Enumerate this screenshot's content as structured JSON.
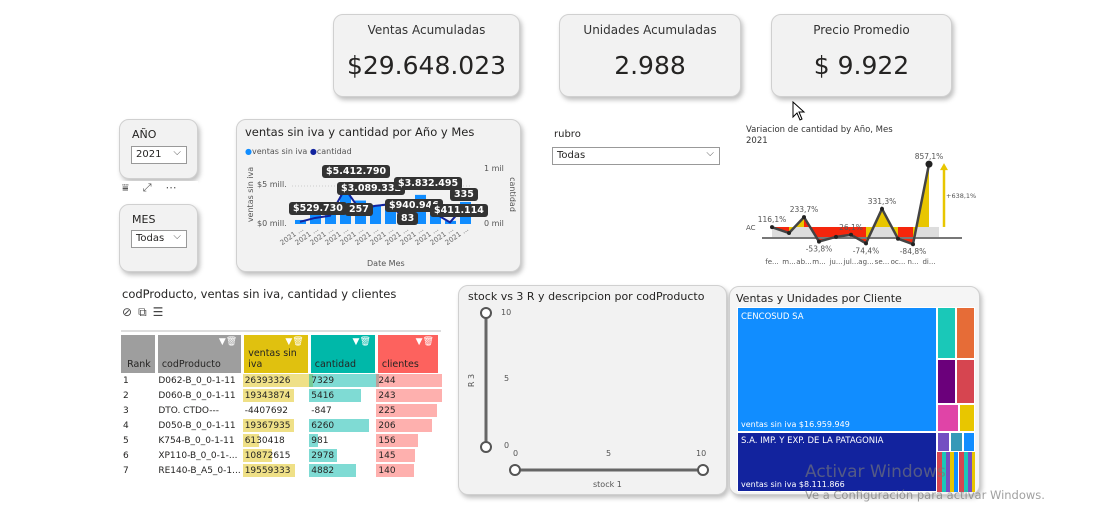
{
  "kpis": [
    {
      "title": "Ventas Acumuladas",
      "value": "$29.648.023"
    },
    {
      "title": "Unidades Acumuladas",
      "value": "2.988"
    },
    {
      "title": "Precio Promedio",
      "value": "$ 9.922"
    }
  ],
  "slicers": {
    "year": {
      "title": "AÑO",
      "value": "2021"
    },
    "month": {
      "title": "MES",
      "value": "Todas"
    },
    "rubro": {
      "title": "rubro",
      "value": "Todas"
    }
  },
  "icons": {
    "filter": "filter-icon",
    "focus": "focus-mode-icon",
    "more": "more-options-icon"
  },
  "combo": {
    "title": "ventas sin iva y cantidad por Año y Mes",
    "legend": [
      "ventas sin iva",
      "cantidad"
    ],
    "colors": {
      "bars": "#118dff",
      "line": "#12239e"
    },
    "y_left_ticks": [
      "$5 mill.",
      "$0 mill."
    ],
    "y_right_ticks": [
      "1 mil",
      "0 mil"
    ],
    "y_left_label": "ventas sin iva",
    "y_right_label": "cantidad",
    "x_label": "Date Mes",
    "x_ticks": [
      "2021 ...",
      "2021 ...",
      "2021 ...",
      "2021 ...",
      "2021 ...",
      "2021 ...",
      "2021 ...",
      "2021 ...",
      "2021 ...",
      "2021 ...",
      "2021 ...",
      "2021 ..."
    ],
    "data_labels": [
      "$5.412.790",
      "$3.089.332",
      "$529.730",
      "257",
      "$3.832.495",
      "$940.946",
      "83",
      "335",
      "$411.114"
    ]
  },
  "chart_data": [
    {
      "type": "bar",
      "title": "ventas sin iva y cantidad por Año y Mes",
      "categories": [
        "2021 ...",
        "2021 ...",
        "2021 ...",
        "2021 ...",
        "2021 ...",
        "2021 ...",
        "2021 ...",
        "2021 ...",
        "2021 ...",
        "2021 ...",
        "2021 ...",
        "2021 ..."
      ],
      "series": [
        {
          "name": "ventas sin iva",
          "type": "bar",
          "values": [
            529730,
            1300000,
            2000000,
            5412790,
            3089332,
            2500000,
            2400000,
            940946,
            3832495,
            1900000,
            411114,
            2900000
          ]
        },
        {
          "name": "cantidad",
          "type": "line",
          "values": [
            40,
            110,
            150,
            640,
            257,
            330,
            360,
            83,
            330,
            190,
            30,
            335
          ]
        }
      ],
      "xlabel": "Date Mes",
      "ylabel": "ventas sin iva",
      "y2label": "cantidad",
      "ylim": [
        0,
        7000000
      ],
      "y2lim": [
        0,
        1000
      ]
    },
    {
      "type": "line",
      "title": "Variacion de cantidad by Año, Mes",
      "subtitle": "2021",
      "categories": [
        "fe...",
        "m...",
        "ab...",
        "m...",
        "ju...",
        "jul...",
        "ag...",
        "se...",
        "oc...",
        "n...",
        "di..."
      ],
      "values": [
        116.1,
        47,
        233.7,
        -53.8,
        2,
        26.1,
        -74.4,
        331.3,
        -20,
        -84.8,
        857.1
      ],
      "labels": [
        "116,1%",
        "",
        "233,7%",
        "-53,8%",
        "",
        "26,1%",
        "-74,4%",
        "331,3%",
        "",
        "-84,8%",
        "857,1%"
      ],
      "reference_label": "AC",
      "delta_label": "+638,1%"
    },
    {
      "type": "scatter",
      "title": "stock vs 3 R y descripcion por codProducto",
      "xlabel": "stock 1",
      "ylabel": "R 3",
      "xlim": [
        0,
        10
      ],
      "ylim": [
        0,
        10
      ],
      "x_ticks": [
        "0",
        "5",
        "10"
      ],
      "y_ticks": [
        "10",
        "5",
        "0"
      ]
    }
  ],
  "table": {
    "title": "codProducto, ventas sin iva, cantidad y clientes",
    "columns": [
      "Rank",
      "codProducto",
      "ventas sin iva",
      "cantidad",
      "clientes"
    ],
    "colors": {
      "ventas": "#e0c10f",
      "cantidad": "#00b8a9",
      "clientes": "#fd625e"
    },
    "rows": [
      [
        "1",
        "D062-B_0_0-1-11",
        "26393326",
        "7329",
        "244"
      ],
      [
        "2",
        "D060-B_0_0-1-11",
        "19343874",
        "5416",
        "243"
      ],
      [
        "3",
        "DTO. CTDO---",
        "-4407692",
        "-847",
        "225"
      ],
      [
        "4",
        "D050-B_0_0-1-11",
        "19367935",
        "6260",
        "206"
      ],
      [
        "5",
        "K754-B_0_0-1-11",
        "6130418",
        "981",
        "156"
      ],
      [
        "6",
        "XP110-B_0_0-1-...",
        "10872615",
        "2978",
        "145"
      ],
      [
        "7",
        "RE140-B_A5_0-1...",
        "19559333",
        "4882",
        "140"
      ]
    ]
  },
  "treemap": {
    "title": "Ventas y Unidades por Cliente",
    "items": [
      {
        "name": "CENCOSUD SA",
        "value_label": "ventas sin iva $16.959.949",
        "color": "#118dff"
      },
      {
        "name": "S.A. IMP. Y EXP. DE LA PATAGONIA",
        "value_label": "ventas sin iva $8.111.866",
        "color": "#12239e"
      }
    ]
  },
  "watermark": {
    "line1": "Activar Windows",
    "line2": "Ve a Configuración para activar Windows."
  }
}
